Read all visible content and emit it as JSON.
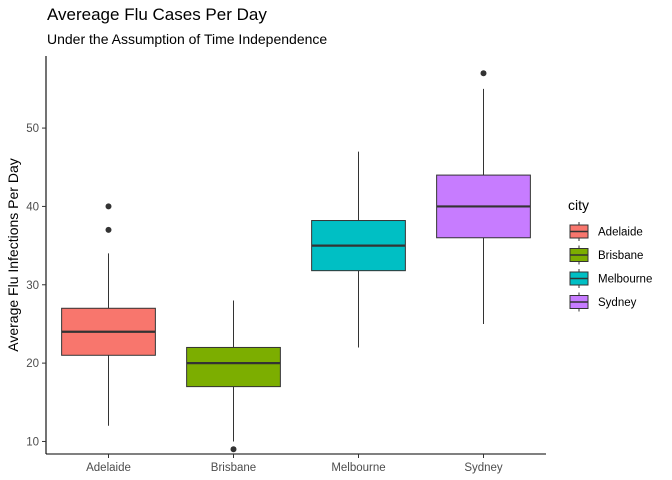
{
  "chart_data": {
    "type": "boxplot",
    "title": "Avereage Flu Cases Per Day",
    "subtitle": "Under the Assumption of Time Independence",
    "xlabel": "",
    "ylabel": "Average Flu Infections Per Day",
    "ylim": [
      8.4,
      59.2
    ],
    "yticks": [
      10,
      20,
      30,
      40,
      50
    ],
    "grid": false,
    "legend": {
      "title": "city",
      "position": "right"
    },
    "categories": [
      "Adelaide",
      "Brisbane",
      "Melbourne",
      "Sydney"
    ],
    "series": [
      {
        "name": "Adelaide",
        "color": "#F8766D",
        "whisker_low": 12,
        "q1": 21,
        "median": 24,
        "q3": 27,
        "whisker_high": 34,
        "outliers": [
          37,
          40
        ]
      },
      {
        "name": "Brisbane",
        "color": "#7CAE00",
        "whisker_low": 10,
        "q1": 17,
        "median": 20,
        "q3": 22,
        "whisker_high": 28,
        "outliers": [
          9
        ]
      },
      {
        "name": "Melbourne",
        "color": "#00BFC4",
        "whisker_low": 22,
        "q1": 31.8,
        "median": 35,
        "q3": 38.2,
        "whisker_high": 47,
        "outliers": []
      },
      {
        "name": "Sydney",
        "color": "#C77CFF",
        "whisker_low": 25,
        "q1": 36,
        "median": 40,
        "q3": 44,
        "whisker_high": 55,
        "outliers": [
          57
        ]
      }
    ]
  }
}
